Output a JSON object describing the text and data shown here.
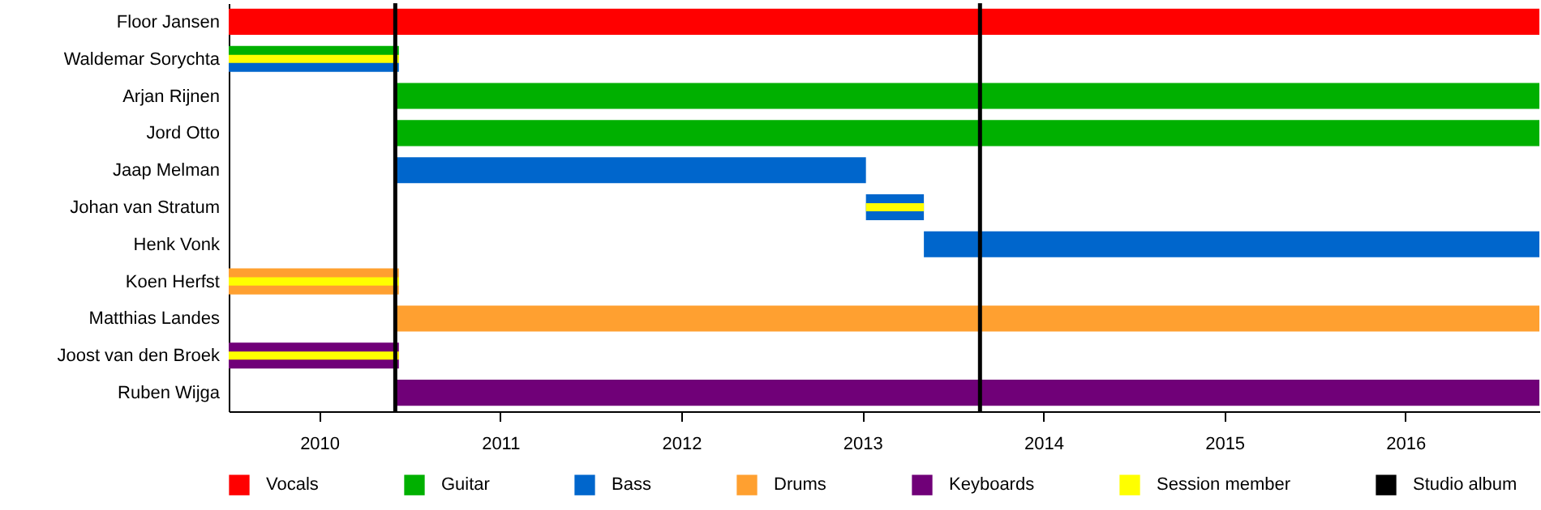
{
  "chart_data": {
    "type": "bar",
    "orientation": "horizontal",
    "categories": [
      "Floor Jansen",
      "Waldemar Sorychta",
      "Arjan Rijnen",
      "Jord Otto",
      "Jaap Melman",
      "Johan van Stratum",
      "Henk Vonk",
      "Koen Herfst",
      "Matthias Landes",
      "Joost van den Broek",
      "Ruben Wijga"
    ],
    "series": [
      {
        "name": "Vocals",
        "color": "#ff0000",
        "base": [
          2009.5,
          null,
          null,
          null,
          null,
          null,
          null,
          null,
          null,
          null,
          null
        ],
        "values": [
          7.24,
          null,
          null,
          null,
          null,
          null,
          null,
          null,
          null,
          null,
          null
        ]
      },
      {
        "name": "Guitar",
        "color": "#00b000",
        "base": [
          null,
          2009.5,
          2010.42,
          2010.42,
          null,
          null,
          null,
          null,
          null,
          null,
          null
        ],
        "values": [
          null,
          0.94,
          6.32,
          6.32,
          null,
          null,
          null,
          null,
          null,
          null,
          null
        ]
      },
      {
        "name": "Bass",
        "color": "#0066cc",
        "base": [
          null,
          2009.5,
          null,
          null,
          2010.42,
          2013.02,
          2013.34,
          null,
          null,
          null,
          null
        ],
        "values": [
          null,
          0.94,
          null,
          null,
          2.6,
          0.32,
          3.4,
          null,
          null,
          null,
          null
        ]
      },
      {
        "name": "Drums",
        "color": "#ffa030",
        "base": [
          null,
          null,
          null,
          null,
          null,
          null,
          null,
          2009.5,
          2010.42,
          null,
          null
        ],
        "values": [
          null,
          null,
          null,
          null,
          null,
          null,
          null,
          0.94,
          6.32,
          null,
          null
        ]
      },
      {
        "name": "Keyboards",
        "color": "#700078",
        "base": [
          null,
          null,
          null,
          null,
          null,
          null,
          null,
          null,
          null,
          2009.5,
          2010.42
        ],
        "values": [
          null,
          null,
          null,
          null,
          null,
          null,
          null,
          null,
          null,
          0.94,
          6.32
        ]
      },
      {
        "name": "Session member",
        "color": "#ffff00",
        "base": [
          null,
          2009.5,
          null,
          null,
          null,
          2013.02,
          null,
          2009.5,
          null,
          2009.5,
          null
        ],
        "values": [
          null,
          0.94,
          null,
          null,
          null,
          0.32,
          null,
          0.94,
          null,
          0.94,
          null
        ]
      }
    ],
    "ref_lines": [
      {
        "axis": "x",
        "value": 2010.42,
        "label": "Studio album",
        "color": "#000000"
      },
      {
        "axis": "x",
        "value": 2013.65,
        "color": "#000000"
      }
    ],
    "xlim": [
      2009.5,
      2016.74
    ],
    "xticks": [
      2010,
      2011,
      2012,
      2013,
      2014,
      2015,
      2016
    ],
    "grid": false,
    "legend": "bottom"
  }
}
